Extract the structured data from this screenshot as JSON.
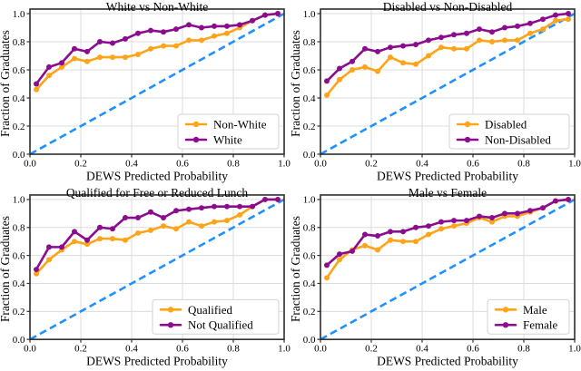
{
  "figure": {
    "rows": 2,
    "cols": 2,
    "background": "#FFFFFF"
  },
  "colors": {
    "orange_series": "#FFA418",
    "purple_series": "#8B0C8E",
    "diagonal_blue": "#1E90FF",
    "gridline": "#DCDCDC",
    "spine": "#2E2E2E",
    "legend_border": "#D3D3D3",
    "legend_background": "#FFFFFF",
    "text": "#000000"
  },
  "chart_data": [
    {
      "type": "line",
      "title": "White vs Non-White",
      "xlabel": "DEWS Predicted Probability",
      "ylabel": "Fraction of Graduates",
      "xlim": [
        0,
        1.0
      ],
      "ylim": [
        0,
        1.03
      ],
      "grid": true,
      "legend_position": "lower right",
      "x_ticks": [
        0,
        0.2,
        0.4,
        0.6,
        0.8,
        1.0
      ],
      "y_ticks": [
        0,
        0.2,
        0.4,
        0.6,
        0.8,
        1.0
      ],
      "x_tick_labels": [
        "0.0",
        "0.2",
        "0.4",
        "0.6",
        "0.8",
        "1.0"
      ],
      "y_tick_labels": [
        "0.0",
        "0.2",
        "0.4",
        "0.6",
        "0.8",
        "1.0"
      ],
      "x": [
        0.025,
        0.075,
        0.125,
        0.175,
        0.225,
        0.275,
        0.325,
        0.375,
        0.425,
        0.475,
        0.525,
        0.575,
        0.625,
        0.675,
        0.725,
        0.775,
        0.825,
        0.875,
        0.925,
        0.975
      ],
      "series": [
        {
          "name": "Non-White",
          "color": "#FFA418",
          "values": [
            0.46,
            0.56,
            0.62,
            0.68,
            0.66,
            0.69,
            0.69,
            0.69,
            0.71,
            0.75,
            0.77,
            0.77,
            0.81,
            0.81,
            0.84,
            0.86,
            0.9,
            0.95,
            0.99,
            1.0
          ]
        },
        {
          "name": "White",
          "color": "#8B0C8E",
          "values": [
            0.5,
            0.62,
            0.65,
            0.75,
            0.73,
            0.8,
            0.79,
            0.82,
            0.86,
            0.88,
            0.87,
            0.89,
            0.92,
            0.9,
            0.91,
            0.91,
            0.92,
            0.95,
            0.99,
            1.0
          ]
        }
      ],
      "diagonal": {
        "style": "dashed",
        "color": "#1E90FF",
        "from": [
          0,
          0
        ],
        "to": [
          1.0,
          1.0
        ]
      }
    },
    {
      "type": "line",
      "title": "Disabled vs Non-Disabled",
      "xlabel": "DEWS Predicted Probability",
      "ylabel": "Fraction of Graduates",
      "xlim": [
        0,
        1.0
      ],
      "ylim": [
        0,
        1.03
      ],
      "grid": true,
      "legend_position": "lower right",
      "x_ticks": [
        0,
        0.2,
        0.4,
        0.6,
        0.8,
        1.0
      ],
      "y_ticks": [
        0,
        0.2,
        0.4,
        0.6,
        0.8,
        1.0
      ],
      "x_tick_labels": [
        "0.0",
        "0.2",
        "0.4",
        "0.6",
        "0.8",
        "1.0"
      ],
      "y_tick_labels": [
        "0.0",
        "0.2",
        "0.4",
        "0.6",
        "0.8",
        "1.0"
      ],
      "x": [
        0.025,
        0.075,
        0.125,
        0.175,
        0.225,
        0.275,
        0.325,
        0.375,
        0.425,
        0.475,
        0.525,
        0.575,
        0.625,
        0.675,
        0.725,
        0.775,
        0.825,
        0.875,
        0.925,
        0.975
      ],
      "series": [
        {
          "name": "Disabled",
          "color": "#FFA418",
          "values": [
            0.42,
            0.53,
            0.6,
            0.62,
            0.59,
            0.69,
            0.65,
            0.64,
            0.7,
            0.76,
            0.75,
            0.75,
            0.81,
            0.8,
            0.81,
            0.81,
            0.86,
            0.89,
            0.95,
            0.96
          ]
        },
        {
          "name": "Non-Disabled",
          "color": "#8B0C8E",
          "values": [
            0.52,
            0.61,
            0.66,
            0.75,
            0.73,
            0.76,
            0.77,
            0.78,
            0.81,
            0.83,
            0.85,
            0.86,
            0.89,
            0.87,
            0.9,
            0.91,
            0.93,
            0.96,
            0.99,
            1.0
          ]
        }
      ],
      "diagonal": {
        "style": "dashed",
        "color": "#1E90FF",
        "from": [
          0,
          0
        ],
        "to": [
          1.0,
          1.0
        ]
      }
    },
    {
      "type": "line",
      "title": "Qualified for Free or Reduced Lunch",
      "xlabel": "DEWS Predicted Probability",
      "ylabel": "Fraction of Graduates",
      "xlim": [
        0,
        1.0
      ],
      "ylim": [
        0,
        1.03
      ],
      "grid": true,
      "legend_position": "lower right",
      "x_ticks": [
        0,
        0.2,
        0.4,
        0.6,
        0.8,
        1.0
      ],
      "y_ticks": [
        0,
        0.2,
        0.4,
        0.6,
        0.8,
        1.0
      ],
      "x_tick_labels": [
        "0.0",
        "0.2",
        "0.4",
        "0.6",
        "0.8",
        "1.0"
      ],
      "y_tick_labels": [
        "0.0",
        "0.2",
        "0.4",
        "0.6",
        "0.8",
        "1.0"
      ],
      "x": [
        0.025,
        0.075,
        0.125,
        0.175,
        0.225,
        0.275,
        0.325,
        0.375,
        0.425,
        0.475,
        0.525,
        0.575,
        0.625,
        0.675,
        0.725,
        0.775,
        0.825,
        0.875,
        0.925,
        0.975
      ],
      "series": [
        {
          "name": "Qualified",
          "color": "#FFA418",
          "values": [
            0.47,
            0.57,
            0.64,
            0.7,
            0.68,
            0.72,
            0.72,
            0.71,
            0.76,
            0.78,
            0.81,
            0.79,
            0.84,
            0.81,
            0.84,
            0.85,
            0.89,
            0.95,
            1.0,
            1.0
          ]
        },
        {
          "name": "Not Qualified",
          "color": "#8B0C8E",
          "values": [
            0.5,
            0.66,
            0.66,
            0.77,
            0.71,
            0.8,
            0.79,
            0.87,
            0.87,
            0.91,
            0.87,
            0.92,
            0.93,
            0.94,
            0.95,
            0.95,
            0.95,
            0.95,
            1.0,
            1.0
          ]
        }
      ],
      "diagonal": {
        "style": "dashed",
        "color": "#1E90FF",
        "from": [
          0,
          0
        ],
        "to": [
          1.0,
          1.0
        ]
      }
    },
    {
      "type": "line",
      "title": "Male vs Female",
      "xlabel": "DEWS Predicted Probability",
      "ylabel": "Fraction of Graduates",
      "xlim": [
        0,
        1.0
      ],
      "ylim": [
        0,
        1.03
      ],
      "grid": true,
      "legend_position": "lower right",
      "x_ticks": [
        0,
        0.2,
        0.4,
        0.6,
        0.8,
        1.0
      ],
      "y_ticks": [
        0,
        0.2,
        0.4,
        0.6,
        0.8,
        1.0
      ],
      "x_tick_labels": [
        "0.0",
        "0.2",
        "0.4",
        "0.6",
        "0.8",
        "1.0"
      ],
      "y_tick_labels": [
        "0.0",
        "0.2",
        "0.4",
        "0.6",
        "0.8",
        "1.0"
      ],
      "x": [
        0.025,
        0.075,
        0.125,
        0.175,
        0.225,
        0.275,
        0.325,
        0.375,
        0.425,
        0.475,
        0.525,
        0.575,
        0.625,
        0.675,
        0.725,
        0.775,
        0.825,
        0.875,
        0.925,
        0.975
      ],
      "series": [
        {
          "name": "Male",
          "color": "#FFA418",
          "values": [
            0.44,
            0.57,
            0.64,
            0.67,
            0.64,
            0.71,
            0.7,
            0.7,
            0.75,
            0.79,
            0.81,
            0.83,
            0.87,
            0.84,
            0.88,
            0.88,
            0.91,
            0.94,
            0.99,
            1.0
          ]
        },
        {
          "name": "Female",
          "color": "#8B0C8E",
          "values": [
            0.53,
            0.61,
            0.63,
            0.75,
            0.74,
            0.77,
            0.77,
            0.8,
            0.81,
            0.84,
            0.85,
            0.85,
            0.88,
            0.87,
            0.9,
            0.9,
            0.92,
            0.94,
            0.99,
            1.0
          ]
        }
      ],
      "diagonal": {
        "style": "dashed",
        "color": "#1E90FF",
        "from": [
          0,
          0
        ],
        "to": [
          1.0,
          1.0
        ]
      }
    }
  ]
}
